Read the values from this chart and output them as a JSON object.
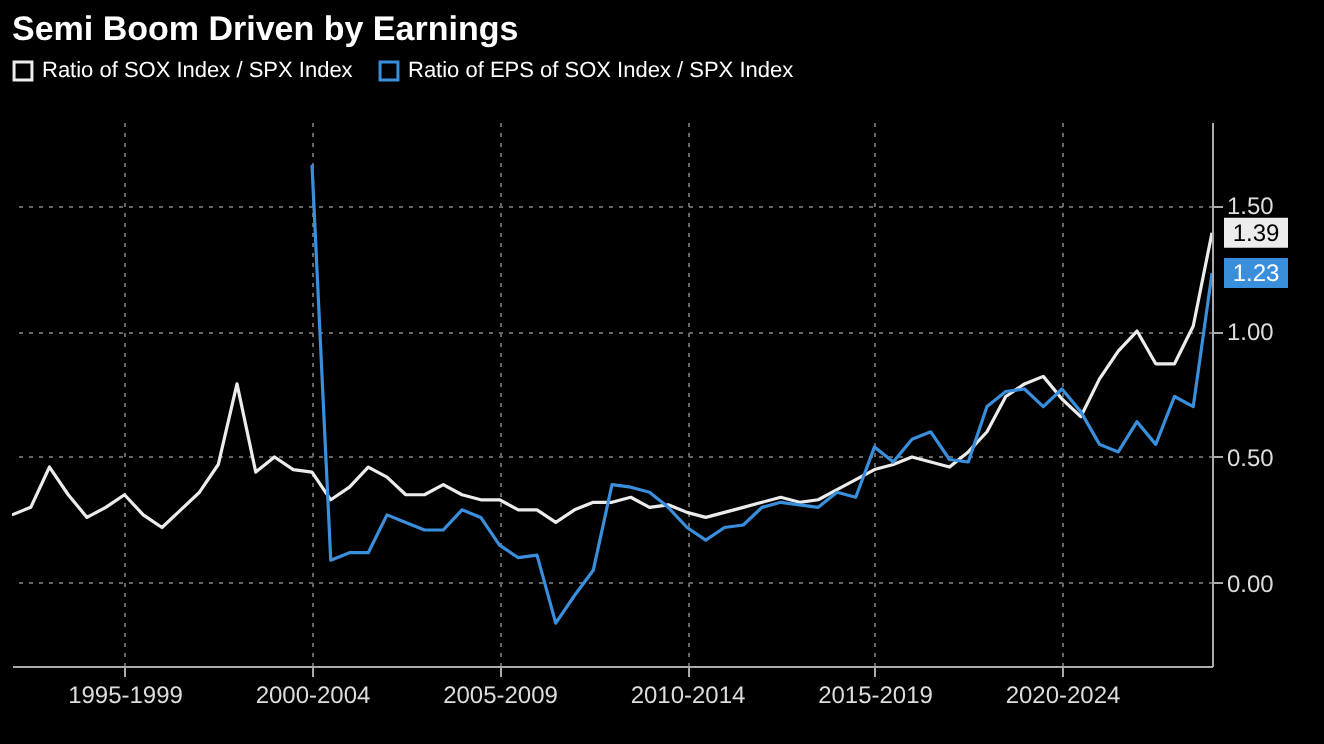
{
  "chart_data": {
    "type": "line",
    "title": "Semi Boom Driven by Earnings",
    "legend": "top left",
    "grid": true,
    "categories": [
      null,
      null,
      null,
      null,
      null,
      null,
      "1995-1999",
      null,
      null,
      null,
      null,
      null,
      null,
      null,
      null,
      null,
      "2000-2004",
      null,
      null,
      null,
      null,
      null,
      null,
      null,
      null,
      null,
      "2005-2009",
      null,
      null,
      null,
      null,
      null,
      null,
      null,
      null,
      null,
      "2010-2014",
      null,
      null,
      null,
      null,
      null,
      null,
      null,
      null,
      null,
      "2015-2019",
      null,
      null,
      null,
      null,
      null,
      null,
      null,
      null,
      null,
      "2020-2024",
      null,
      null,
      null,
      null,
      null,
      null,
      null,
      null
    ],
    "ylim": [
      -0.33,
      1.83
    ],
    "yticks": [
      {
        "value": 0,
        "label": "0.00"
      },
      {
        "value": 0.5,
        "label": "0.50"
      },
      {
        "value": 1,
        "label": "1.00"
      },
      {
        "value": 1.5,
        "label": "1.50"
      }
    ],
    "series": [
      {
        "name": "Ratio of SOX Index / SPX Index",
        "color": "#ececec",
        "values": [
          0.27,
          0.3,
          0.46,
          0.35,
          0.26,
          0.3,
          0.35,
          0.27,
          0.22,
          0.29,
          0.36,
          0.47,
          0.79,
          0.44,
          0.5,
          0.45,
          0.44,
          0.33,
          0.38,
          0.46,
          0.42,
          0.35,
          0.35,
          0.39,
          0.35,
          0.33,
          0.33,
          0.29,
          0.29,
          0.24,
          0.29,
          0.32,
          0.32,
          0.34,
          0.3,
          0.31,
          0.28,
          0.26,
          0.28,
          0.3,
          0.32,
          0.34,
          0.32,
          0.33,
          0.37,
          0.41,
          0.45,
          0.47,
          0.5,
          0.48,
          0.46,
          0.52,
          0.6,
          0.74,
          0.79,
          0.82,
          0.73,
          0.66,
          0.81,
          0.92,
          1.0,
          0.87,
          0.87,
          1.02,
          1.39
        ],
        "value_labels": [
          null,
          null,
          null,
          null,
          null,
          null,
          null,
          null,
          null,
          null,
          null,
          null,
          null,
          null,
          null,
          null,
          null,
          null,
          null,
          null,
          null,
          null,
          null,
          null,
          null,
          null,
          null,
          null,
          null,
          null,
          null,
          null,
          null,
          null,
          null,
          null,
          null,
          null,
          null,
          null,
          null,
          null,
          null,
          null,
          null,
          null,
          null,
          null,
          null,
          null,
          null,
          null,
          null,
          null,
          null,
          null,
          null,
          null,
          null,
          null,
          null,
          null,
          null,
          null,
          "1.39"
        ]
      },
      {
        "name": "Ratio of EPS of SOX Index / SPX Index",
        "color": "#3a8fdc",
        "values": [
          null,
          null,
          null,
          null,
          null,
          null,
          null,
          null,
          null,
          null,
          null,
          null,
          null,
          null,
          null,
          null,
          1.66,
          0.09,
          0.12,
          0.12,
          0.27,
          0.24,
          0.21,
          0.21,
          0.29,
          0.26,
          0.15,
          0.1,
          0.11,
          -0.16,
          -0.05,
          0.05,
          0.39,
          0.38,
          0.36,
          0.3,
          0.22,
          0.17,
          0.22,
          0.23,
          0.3,
          0.32,
          0.31,
          0.3,
          0.36,
          0.34,
          0.54,
          0.48,
          0.57,
          0.6,
          0.49,
          0.48,
          0.7,
          0.76,
          0.77,
          0.7,
          0.77,
          0.68,
          0.55,
          0.52,
          0.64,
          0.55,
          0.74,
          0.7,
          1.23
        ],
        "value_labels": [
          null,
          null,
          null,
          null,
          null,
          null,
          null,
          null,
          null,
          null,
          null,
          null,
          null,
          null,
          null,
          null,
          null,
          null,
          null,
          null,
          null,
          null,
          null,
          null,
          null,
          null,
          null,
          null,
          null,
          null,
          null,
          null,
          null,
          null,
          null,
          null,
          null,
          null,
          null,
          null,
          null,
          null,
          null,
          null,
          null,
          null,
          null,
          null,
          null,
          null,
          null,
          null,
          null,
          null,
          null,
          null,
          null,
          null,
          null,
          null,
          null,
          null,
          null,
          null,
          "1.23"
        ]
      }
    ]
  }
}
